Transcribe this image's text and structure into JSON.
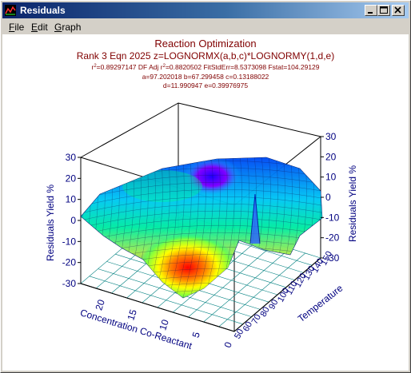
{
  "window": {
    "title": "Residuals",
    "icon": "tablecurve-app-icon",
    "controls": {
      "minimize": "minimize-icon",
      "maximize": "maximize-icon",
      "close": "close-icon"
    }
  },
  "menu": {
    "items": [
      {
        "label": "File",
        "mnemonic": "F",
        "rest": "ile"
      },
      {
        "label": "Edit",
        "mnemonic": "E",
        "rest": "dit"
      },
      {
        "label": "Graph",
        "mnemonic": "G",
        "rest": "raph"
      }
    ]
  },
  "chart_data": {
    "type": "surface3d",
    "title": "Reaction Optimization",
    "subtitle": "Rank 3  Eqn 2025  z=LOGNORMX(a,b,c)*LOGNORMY(1,d,e)",
    "stats": {
      "r2_label": "r",
      "r2_value": "=0.89297147",
      "df_label": "  DF Adj r",
      "df_value": "=0.8820502   FitStdErr=8.5373098   Fstat=104.29129",
      "sup": "2"
    },
    "params_line1": "a=97.202018 b=67.299458 c=0.13188022",
    "params_line2": "d=11.990947 e=0.39976975",
    "zlabel_left": "Residuals Yield %",
    "zlabel_right": "Residuals Yield %",
    "xlabel": "Concentration Co-Reactant",
    "ylabel": "Temperature",
    "z_ticks_left": [
      "30",
      "20",
      "10",
      "0",
      "-10",
      "-20",
      "-30"
    ],
    "z_ticks_right": [
      "30",
      "20",
      "10",
      "0",
      "-10",
      "-20",
      "-30"
    ],
    "x_ticks": [
      "20",
      "15",
      "10",
      "5",
      "0"
    ],
    "y_ticks": [
      "50",
      "60",
      "70",
      "80",
      "90",
      "100",
      "110",
      "120",
      "130",
      "140",
      "150"
    ],
    "zlim": [
      -30,
      30
    ],
    "colormap": [
      "#0000ff",
      "#00c8ff",
      "#00ff80",
      "#ffff00",
      "#ff8000",
      "#ff0000"
    ],
    "grid_color": "#008080",
    "text_color": "#000080",
    "title_color": "#800000"
  }
}
